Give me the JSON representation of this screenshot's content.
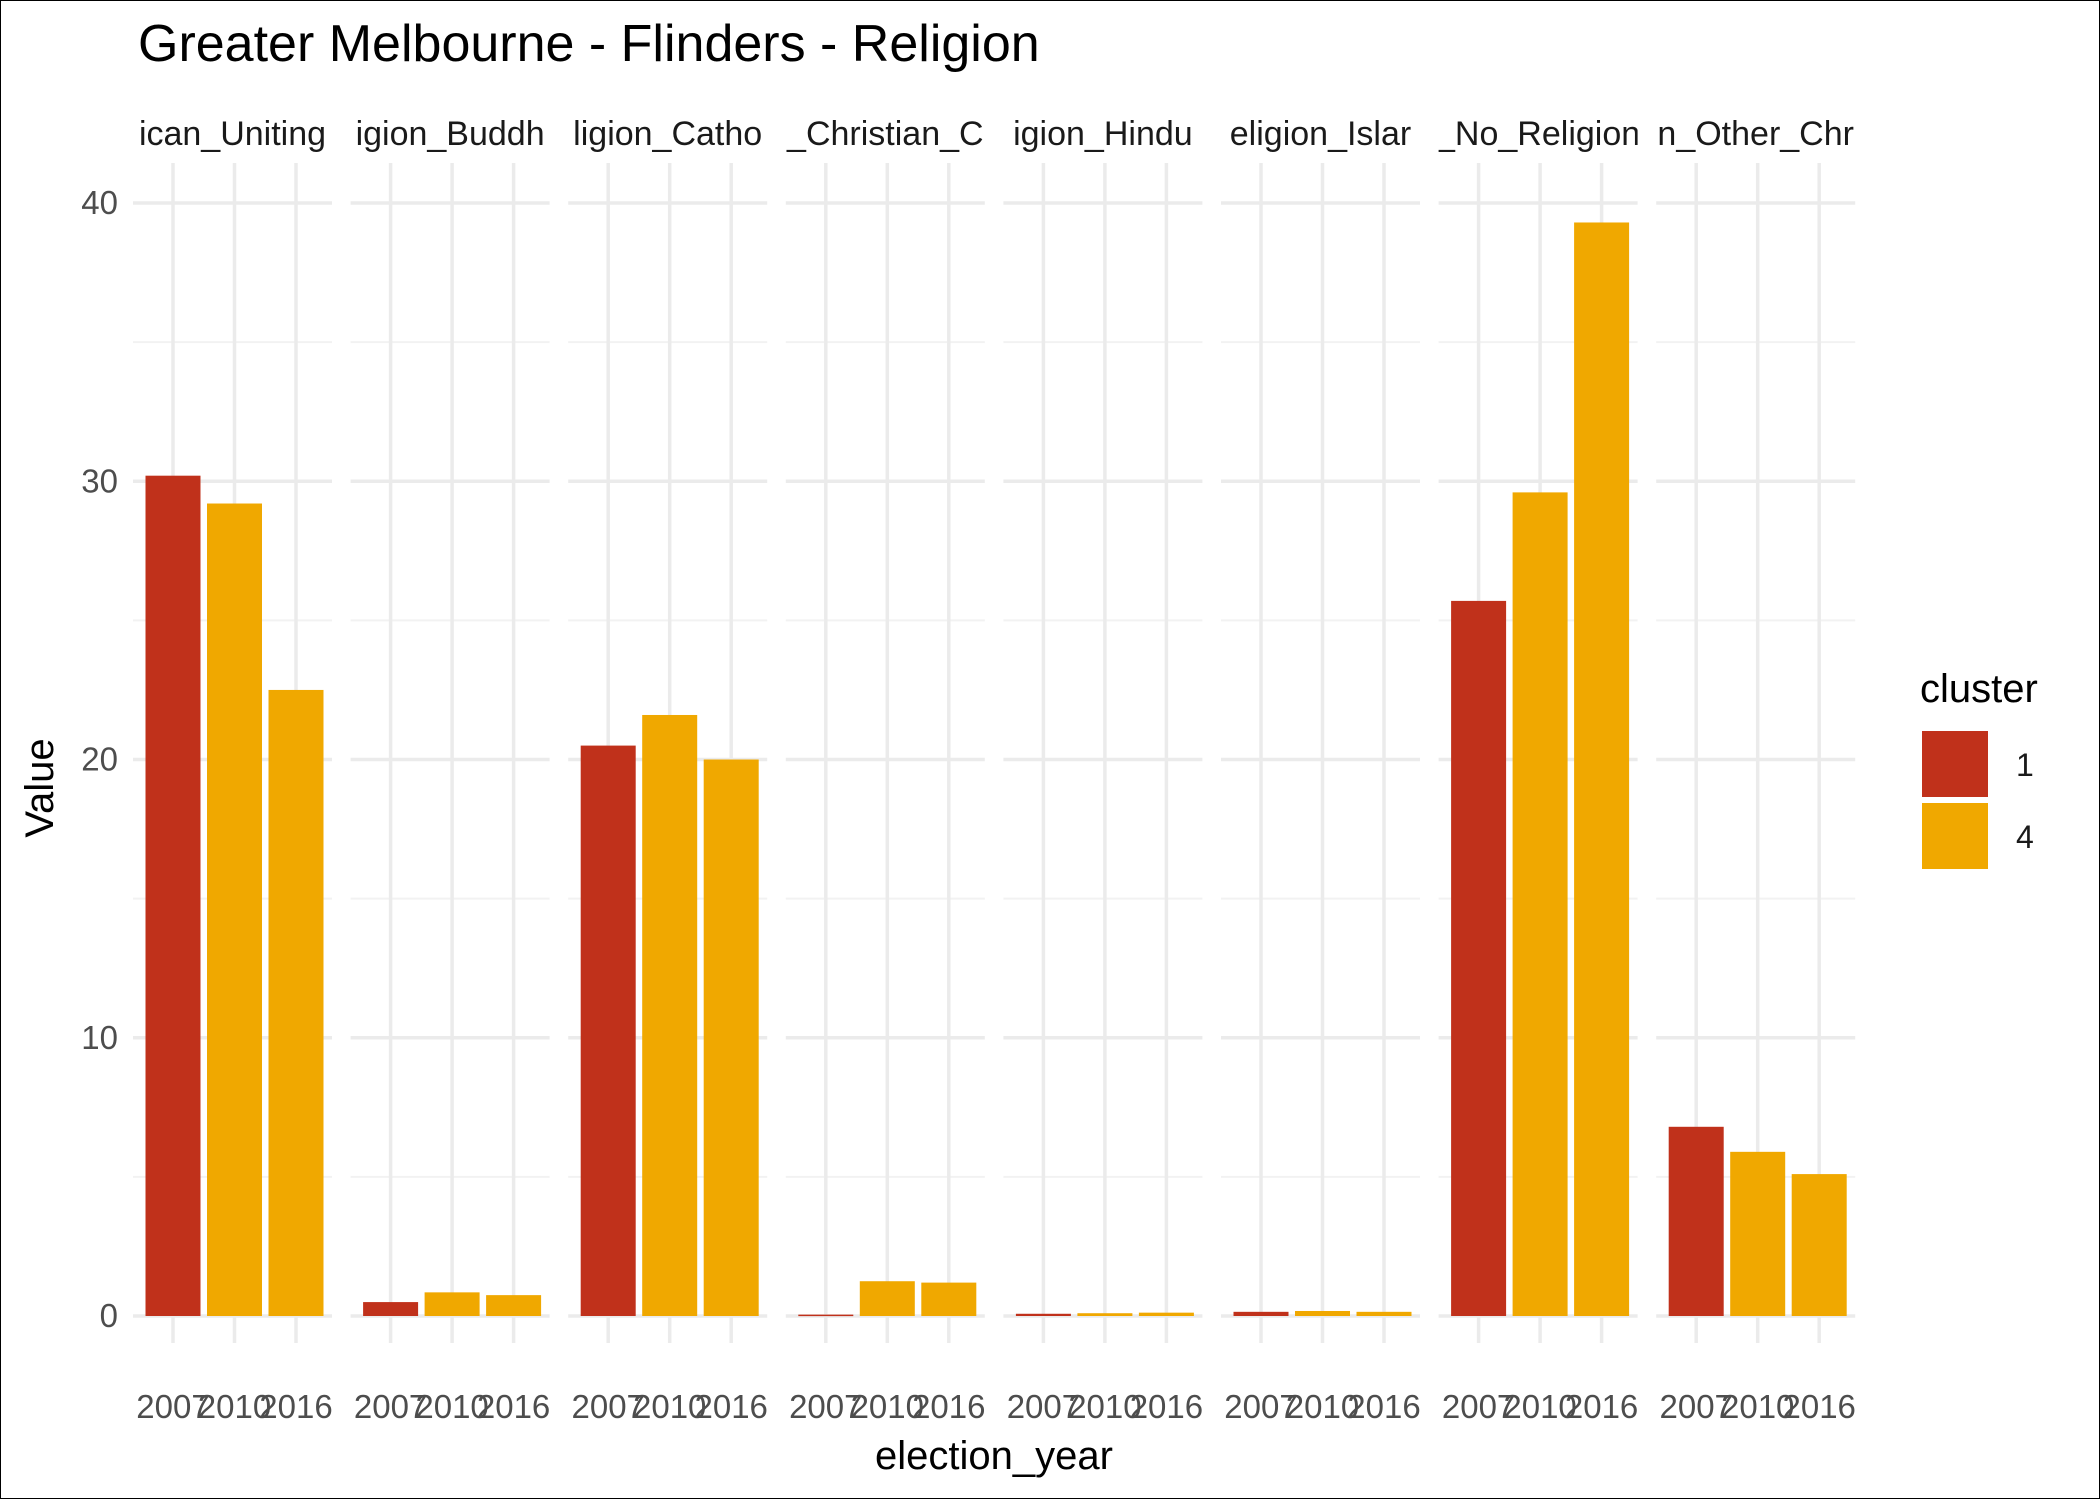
{
  "chart_data": {
    "type": "bar",
    "title": "Greater Melbourne - Flinders - Religion",
    "xlabel": "election_year",
    "ylabel": "Value",
    "ylim": [
      0,
      40
    ],
    "yticks": [
      0,
      10,
      20,
      30,
      40
    ],
    "grid": true,
    "legend": {
      "title": "cluster",
      "position": "right"
    },
    "clusters": [
      {
        "name": "1",
        "color": "#C0311B"
      },
      {
        "name": "4",
        "color": "#F0A800"
      }
    ],
    "panels": [
      {
        "label": "ican_Uniting",
        "bars": [
          {
            "x": "2007",
            "value": 30.2,
            "cluster": "1"
          },
          {
            "x": "2010",
            "value": 29.2,
            "cluster": "4"
          },
          {
            "x": "2016",
            "value": 22.5,
            "cluster": "4"
          }
        ]
      },
      {
        "label": "igion_Buddh",
        "bars": [
          {
            "x": "2007",
            "value": 0.5,
            "cluster": "1"
          },
          {
            "x": "2010",
            "value": 0.85,
            "cluster": "4"
          },
          {
            "x": "2016",
            "value": 0.75,
            "cluster": "4"
          }
        ]
      },
      {
        "label": "ligion_Catho",
        "bars": [
          {
            "x": "2007",
            "value": 20.5,
            "cluster": "1"
          },
          {
            "x": "2010",
            "value": 21.6,
            "cluster": "4"
          },
          {
            "x": "2016",
            "value": 20.0,
            "cluster": "4"
          }
        ]
      },
      {
        "label": "_Christian_C",
        "bars": [
          {
            "x": "2007",
            "value": 0.05,
            "cluster": "1"
          },
          {
            "x": "2010",
            "value": 1.25,
            "cluster": "4"
          },
          {
            "x": "2016",
            "value": 1.2,
            "cluster": "4"
          }
        ]
      },
      {
        "label": "igion_Hindu",
        "bars": [
          {
            "x": "2007",
            "value": 0.08,
            "cluster": "1"
          },
          {
            "x": "2010",
            "value": 0.1,
            "cluster": "4"
          },
          {
            "x": "2016",
            "value": 0.12,
            "cluster": "4"
          }
        ]
      },
      {
        "label": "eligion_Islar",
        "bars": [
          {
            "x": "2007",
            "value": 0.15,
            "cluster": "1"
          },
          {
            "x": "2010",
            "value": 0.18,
            "cluster": "4"
          },
          {
            "x": "2016",
            "value": 0.15,
            "cluster": "4"
          }
        ]
      },
      {
        "label": "_No_Religion",
        "bars": [
          {
            "x": "2007",
            "value": 25.7,
            "cluster": "1"
          },
          {
            "x": "2010",
            "value": 29.6,
            "cluster": "4"
          },
          {
            "x": "2016",
            "value": 39.3,
            "cluster": "4"
          }
        ]
      },
      {
        "label": "n_Other_Chr",
        "bars": [
          {
            "x": "2007",
            "value": 6.8,
            "cluster": "1"
          },
          {
            "x": "2010",
            "value": 5.9,
            "cluster": "4"
          },
          {
            "x": "2016",
            "value": 5.1,
            "cluster": "4"
          }
        ]
      }
    ]
  }
}
